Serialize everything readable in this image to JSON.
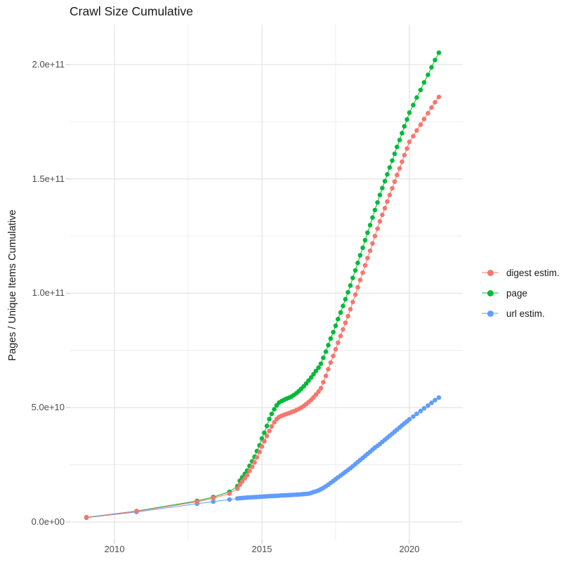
{
  "title": "Crawl Size Cumulative",
  "axes": {
    "y_label": "Pages / Unique Items Cumulative",
    "y_ticks": [
      "0.0e+00",
      "5.0e+10",
      "1.0e+11",
      "1.5e+11",
      "2.0e+11"
    ],
    "x_ticks": [
      "2010",
      "2015",
      "2020"
    ]
  },
  "legend": [
    {
      "label": "digest estim.",
      "color": "#F8766D"
    },
    {
      "label": "page",
      "color": "#00BA38"
    },
    {
      "label": "url estim.",
      "color": "#619CFF"
    }
  ],
  "style_colors": {
    "grid": "#e5e5e5",
    "tick_mark": "#cfcfcf",
    "axis_text": "#4d4d4d",
    "text": "#1a1a1a",
    "background": "#ffffff"
  },
  "chart_data": {
    "type": "scatter",
    "title": "Crawl Size Cumulative",
    "xlabel": "",
    "ylabel": "Pages / Unique Items Cumulative",
    "x_unit": "year (decimal)",
    "y_unit": "billions of items (1e9); axis shows scientific notation",
    "xlim": [
      2008.5,
      2021.85
    ],
    "ylim_e9": [
      -8,
      218
    ],
    "x_major_gridlines": [
      2010,
      2015,
      2020
    ],
    "x_minor_gridlines": [
      2012.5,
      2017.5
    ],
    "y_major_gridlines_e9": [
      0,
      50,
      100,
      150,
      200
    ],
    "y_minor_gridlines_e9": [
      25,
      75,
      125,
      175
    ],
    "grid": true,
    "legend_position": "right",
    "marker_radius_px": 3.3,
    "series": [
      {
        "name": "digest estim.",
        "color": "#F8766D",
        "points_year_e9": [
          [
            2009.05,
            2.1
          ],
          [
            2010.75,
            4.7
          ],
          [
            2012.8,
            8.8
          ],
          [
            2013.35,
            10.4
          ],
          [
            2013.9,
            12.4
          ],
          [
            2014.17,
            14.6
          ],
          [
            2014.25,
            16.3
          ],
          [
            2014.33,
            17.7
          ],
          [
            2014.42,
            19.1
          ],
          [
            2014.5,
            20.5
          ],
          [
            2014.58,
            22.3
          ],
          [
            2014.67,
            24.1
          ],
          [
            2014.75,
            26.1
          ],
          [
            2014.83,
            28.3
          ],
          [
            2014.92,
            30.6
          ],
          [
            2015.0,
            33.0
          ],
          [
            2015.08,
            35.3
          ],
          [
            2015.17,
            37.6
          ],
          [
            2015.25,
            39.8
          ],
          [
            2015.33,
            41.8
          ],
          [
            2015.42,
            43.6
          ],
          [
            2015.5,
            45.0
          ],
          [
            2015.58,
            45.9
          ],
          [
            2015.67,
            46.4
          ],
          [
            2015.75,
            46.8
          ],
          [
            2015.83,
            47.2
          ],
          [
            2015.92,
            47.6
          ],
          [
            2016.0,
            48.0
          ],
          [
            2016.08,
            48.4
          ],
          [
            2016.17,
            48.9
          ],
          [
            2016.25,
            49.4
          ],
          [
            2016.33,
            50.0
          ],
          [
            2016.42,
            50.7
          ],
          [
            2016.5,
            51.5
          ],
          [
            2016.58,
            52.4
          ],
          [
            2016.67,
            53.4
          ],
          [
            2016.75,
            54.5
          ],
          [
            2016.83,
            55.7
          ],
          [
            2016.92,
            57.0
          ],
          [
            2017.0,
            58.5
          ],
          [
            2017.08,
            61.1
          ],
          [
            2017.17,
            63.9
          ],
          [
            2017.25,
            66.8
          ],
          [
            2017.33,
            69.7
          ],
          [
            2017.42,
            72.6
          ],
          [
            2017.5,
            75.5
          ],
          [
            2017.58,
            78.4
          ],
          [
            2017.67,
            81.3
          ],
          [
            2017.75,
            84.2
          ],
          [
            2017.83,
            87.1
          ],
          [
            2017.92,
            90.0
          ],
          [
            2018.0,
            93.0
          ],
          [
            2018.08,
            96.2
          ],
          [
            2018.17,
            99.4
          ],
          [
            2018.25,
            102.6
          ],
          [
            2018.33,
            105.8
          ],
          [
            2018.42,
            109.0
          ],
          [
            2018.5,
            112.2
          ],
          [
            2018.58,
            115.4
          ],
          [
            2018.67,
            118.6
          ],
          [
            2018.75,
            121.8
          ],
          [
            2018.83,
            125.0
          ],
          [
            2018.92,
            128.2
          ],
          [
            2019.0,
            131.4
          ],
          [
            2019.08,
            134.3
          ],
          [
            2019.17,
            137.2
          ],
          [
            2019.25,
            140.1
          ],
          [
            2019.33,
            143.0
          ],
          [
            2019.42,
            145.9
          ],
          [
            2019.5,
            148.8
          ],
          [
            2019.58,
            151.7
          ],
          [
            2019.67,
            154.6
          ],
          [
            2019.75,
            157.5
          ],
          [
            2019.83,
            160.4
          ],
          [
            2019.92,
            163.3
          ],
          [
            2020.0,
            166.2
          ],
          [
            2020.13,
            168.7
          ],
          [
            2020.25,
            171.2
          ],
          [
            2020.38,
            173.7
          ],
          [
            2020.5,
            176.2
          ],
          [
            2020.63,
            178.7
          ],
          [
            2020.75,
            181.2
          ],
          [
            2020.87,
            183.5
          ],
          [
            2021.0,
            185.8
          ]
        ]
      },
      {
        "name": "page",
        "color": "#00BA38",
        "points_year_e9": [
          [
            2009.05,
            2.0
          ],
          [
            2010.75,
            4.8
          ],
          [
            2012.8,
            9.2
          ],
          [
            2013.35,
            10.9
          ],
          [
            2013.9,
            13.2
          ],
          [
            2014.17,
            15.7
          ],
          [
            2014.25,
            18.0
          ],
          [
            2014.33,
            19.5
          ],
          [
            2014.42,
            21.0
          ],
          [
            2014.5,
            22.5
          ],
          [
            2014.58,
            24.5
          ],
          [
            2014.67,
            26.5
          ],
          [
            2014.75,
            28.5
          ],
          [
            2014.83,
            31.0
          ],
          [
            2014.92,
            33.5
          ],
          [
            2015.0,
            36.5
          ],
          [
            2015.08,
            39.0
          ],
          [
            2015.17,
            42.0
          ],
          [
            2015.25,
            45.0
          ],
          [
            2015.33,
            47.3
          ],
          [
            2015.42,
            49.3
          ],
          [
            2015.5,
            51.0
          ],
          [
            2015.58,
            52.2
          ],
          [
            2015.67,
            52.9
          ],
          [
            2015.75,
            53.4
          ],
          [
            2015.83,
            53.9
          ],
          [
            2015.92,
            54.3
          ],
          [
            2016.0,
            54.8
          ],
          [
            2016.08,
            55.5
          ],
          [
            2016.17,
            56.3
          ],
          [
            2016.25,
            57.2
          ],
          [
            2016.33,
            58.2
          ],
          [
            2016.42,
            59.3
          ],
          [
            2016.5,
            60.5
          ],
          [
            2016.58,
            61.8
          ],
          [
            2016.67,
            63.2
          ],
          [
            2016.75,
            64.6
          ],
          [
            2016.83,
            66.0
          ],
          [
            2016.92,
            67.5
          ],
          [
            2017.0,
            69.2
          ],
          [
            2017.08,
            71.8
          ],
          [
            2017.17,
            74.5
          ],
          [
            2017.25,
            77.3
          ],
          [
            2017.33,
            80.2
          ],
          [
            2017.42,
            83.0
          ],
          [
            2017.5,
            85.8
          ],
          [
            2017.58,
            88.7
          ],
          [
            2017.67,
            91.6
          ],
          [
            2017.75,
            94.5
          ],
          [
            2017.83,
            97.4
          ],
          [
            2017.92,
            100.4
          ],
          [
            2018.0,
            103.4
          ],
          [
            2018.08,
            106.7
          ],
          [
            2018.17,
            110.0
          ],
          [
            2018.25,
            113.3
          ],
          [
            2018.33,
            116.6
          ],
          [
            2018.42,
            119.9
          ],
          [
            2018.5,
            123.2
          ],
          [
            2018.58,
            126.5
          ],
          [
            2018.67,
            129.8
          ],
          [
            2018.75,
            133.1
          ],
          [
            2018.83,
            136.4
          ],
          [
            2018.92,
            139.7
          ],
          [
            2019.0,
            143.0
          ],
          [
            2019.08,
            146.0
          ],
          [
            2019.17,
            149.0
          ],
          [
            2019.25,
            152.0
          ],
          [
            2019.33,
            155.0
          ],
          [
            2019.42,
            158.0
          ],
          [
            2019.5,
            161.0
          ],
          [
            2019.58,
            164.0
          ],
          [
            2019.67,
            167.0
          ],
          [
            2019.75,
            170.0
          ],
          [
            2019.83,
            173.0
          ],
          [
            2019.92,
            176.0
          ],
          [
            2020.0,
            179.0
          ],
          [
            2020.13,
            182.3
          ],
          [
            2020.25,
            185.6
          ],
          [
            2020.38,
            188.9
          ],
          [
            2020.5,
            192.2
          ],
          [
            2020.63,
            195.5
          ],
          [
            2020.75,
            198.8
          ],
          [
            2020.87,
            202.0
          ],
          [
            2021.0,
            205.2
          ]
        ]
      },
      {
        "name": "url estim.",
        "color": "#619CFF",
        "points_year_e9": [
          [
            2009.05,
            1.9
          ],
          [
            2010.75,
            4.4
          ],
          [
            2012.8,
            8.0
          ],
          [
            2013.35,
            8.9
          ],
          [
            2013.9,
            9.8
          ],
          [
            2014.17,
            10.3
          ],
          [
            2014.25,
            10.4
          ],
          [
            2014.33,
            10.5
          ],
          [
            2014.42,
            10.6
          ],
          [
            2014.5,
            10.7
          ],
          [
            2014.58,
            10.75
          ],
          [
            2014.67,
            10.8
          ],
          [
            2014.75,
            10.9
          ],
          [
            2014.83,
            10.95
          ],
          [
            2014.92,
            11.0
          ],
          [
            2015.0,
            11.1
          ],
          [
            2015.08,
            11.15
          ],
          [
            2015.17,
            11.2
          ],
          [
            2015.25,
            11.3
          ],
          [
            2015.33,
            11.35
          ],
          [
            2015.42,
            11.4
          ],
          [
            2015.5,
            11.45
          ],
          [
            2015.58,
            11.5
          ],
          [
            2015.67,
            11.6
          ],
          [
            2015.75,
            11.65
          ],
          [
            2015.83,
            11.7
          ],
          [
            2015.92,
            11.75
          ],
          [
            2016.0,
            11.8
          ],
          [
            2016.08,
            11.9
          ],
          [
            2016.17,
            11.95
          ],
          [
            2016.25,
            12.0
          ],
          [
            2016.33,
            12.1
          ],
          [
            2016.42,
            12.2
          ],
          [
            2016.5,
            12.3
          ],
          [
            2016.58,
            12.4
          ],
          [
            2016.67,
            12.7
          ],
          [
            2016.75,
            13.1
          ],
          [
            2016.83,
            13.4
          ],
          [
            2016.92,
            13.8
          ],
          [
            2017.0,
            14.3
          ],
          [
            2017.08,
            14.9
          ],
          [
            2017.17,
            15.6
          ],
          [
            2017.25,
            16.3
          ],
          [
            2017.33,
            17.1
          ],
          [
            2017.42,
            17.9
          ],
          [
            2017.5,
            18.7
          ],
          [
            2017.58,
            19.5
          ],
          [
            2017.67,
            20.3
          ],
          [
            2017.75,
            21.1
          ],
          [
            2017.83,
            21.9
          ],
          [
            2017.92,
            22.7
          ],
          [
            2018.0,
            23.5
          ],
          [
            2018.08,
            24.4
          ],
          [
            2018.17,
            25.3
          ],
          [
            2018.25,
            26.2
          ],
          [
            2018.33,
            27.1
          ],
          [
            2018.42,
            28.0
          ],
          [
            2018.5,
            28.9
          ],
          [
            2018.58,
            29.8
          ],
          [
            2018.67,
            30.7
          ],
          [
            2018.75,
            31.6
          ],
          [
            2018.83,
            32.5
          ],
          [
            2018.92,
            33.3
          ],
          [
            2019.0,
            34.1
          ],
          [
            2019.08,
            35.0
          ],
          [
            2019.17,
            35.9
          ],
          [
            2019.25,
            36.8
          ],
          [
            2019.33,
            37.7
          ],
          [
            2019.42,
            38.6
          ],
          [
            2019.5,
            39.5
          ],
          [
            2019.58,
            40.4
          ],
          [
            2019.67,
            41.3
          ],
          [
            2019.75,
            42.2
          ],
          [
            2019.83,
            43.1
          ],
          [
            2019.92,
            44.0
          ],
          [
            2020.0,
            44.9
          ],
          [
            2020.13,
            46.1
          ],
          [
            2020.25,
            47.3
          ],
          [
            2020.38,
            48.5
          ],
          [
            2020.5,
            49.7
          ],
          [
            2020.63,
            50.9
          ],
          [
            2020.75,
            52.1
          ],
          [
            2020.87,
            53.3
          ],
          [
            2021.0,
            54.4
          ]
        ]
      }
    ]
  }
}
